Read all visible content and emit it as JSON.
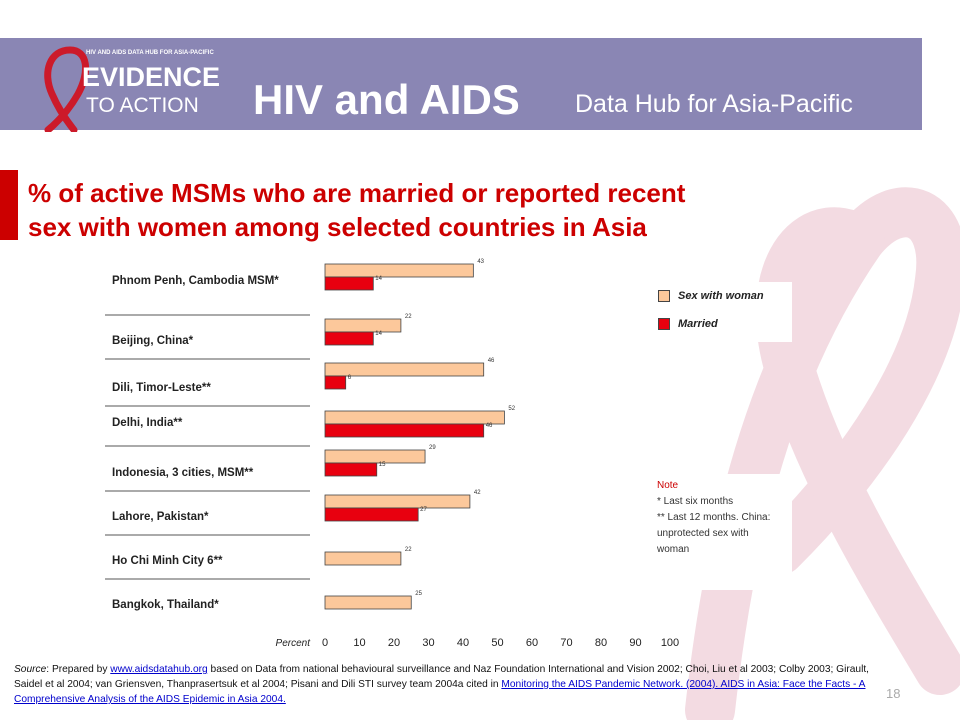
{
  "header": {
    "logo_top_text": "HIV AND AIDS DATA HUB FOR ASIA-PACIFIC",
    "logo_line1": "EVIDENCE",
    "logo_line2": "TO ACTION",
    "title": "HIV and AIDS",
    "subtitle": "Data Hub for Asia-Pacific"
  },
  "slide_title_line1": "% of active MSMs who are married or reported recent",
  "slide_title_line2": "sex with women among selected countries in Asia",
  "colors": {
    "sex_with_woman": "#fcc89b",
    "married": "#e8000f",
    "header": "#8a86b4",
    "title": "#cc0000"
  },
  "chart_data": {
    "type": "bar",
    "orientation": "horizontal",
    "categories": [
      "Phnom Penh, Cambodia MSM*",
      "Beijing, China*",
      "Dili, Timor-Leste**",
      "Delhi, India**",
      "Indonesia, 3 cities, MSM**",
      "Lahore, Pakistan*",
      "Ho Chi Minh City 6**",
      "Bangkok, Thailand*"
    ],
    "series": [
      {
        "name": "Sex with woman",
        "values": [
          43,
          22,
          46,
          52,
          29,
          42,
          22,
          25
        ]
      },
      {
        "name": "Married",
        "values": [
          14,
          14,
          6,
          46,
          15,
          27,
          null,
          null
        ]
      }
    ],
    "xlabel": "Percent",
    "xlim": [
      0,
      100
    ],
    "xticks": [
      0,
      10,
      20,
      30,
      40,
      50,
      60,
      70,
      80,
      90,
      100
    ],
    "legend_position": "right"
  },
  "note": {
    "title": "Note",
    "lines": [
      "*  Last six months",
      "** Last 12 months. China:",
      "unprotected sex with",
      "woman"
    ]
  },
  "source": {
    "prefix": "Source",
    "text1": ": Prepared by ",
    "link1": "www.aidsdatahub.org",
    "text2": " based on Data from national behavioural surveillance and Naz Foundation International and Vision 2002; Choi, Liu et al 2003; Colby 2003; Girault, Saidel et al 2004; van Griensven, Thanprasertsuk et al 2004; Pisani and Dili STI survey team 2004a cited in ",
    "link2": "Monitoring the AIDS Pandemic Network. (2004). AIDS in Asia: Face the Facts - A Comprehensive Analysis of the AIDS Epidemic in Asia 2004."
  },
  "page_number": "18"
}
